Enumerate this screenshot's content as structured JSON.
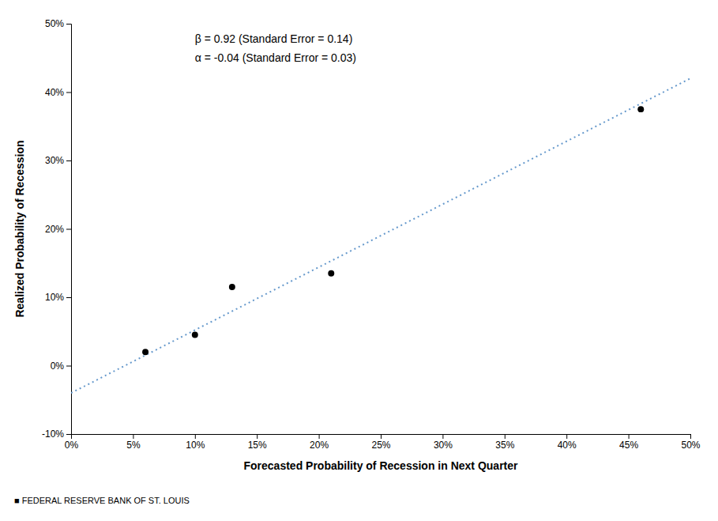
{
  "chart_data": {
    "type": "scatter",
    "x_label": "Forecasted Probability of Recession in Next Quarter",
    "y_label": "Realized Probability of Recession",
    "series": [
      {
        "type": "scatter",
        "color": "#000000",
        "marker": "circle",
        "x": [
          0.06,
          0.1,
          0.13,
          0.21,
          0.46
        ],
        "values": [
          0.02,
          0.045,
          0.115,
          0.135,
          0.375
        ]
      },
      {
        "type": "line",
        "color": "#6699CC",
        "line_style": "dotted",
        "x": [
          0.0,
          0.5
        ],
        "values": [
          -0.04,
          0.42
        ]
      }
    ],
    "xlim": [
      0.0,
      0.5
    ],
    "ylim": [
      -0.1,
      0.5
    ],
    "xticks": [
      {
        "value": 0.0,
        "label": "0%"
      },
      {
        "value": 0.05,
        "label": "5%"
      },
      {
        "value": 0.1,
        "label": "10%"
      },
      {
        "value": 0.15,
        "label": "15%"
      },
      {
        "value": 0.2,
        "label": "20%"
      },
      {
        "value": 0.25,
        "label": "25%"
      },
      {
        "value": 0.3,
        "label": "30%"
      },
      {
        "value": 0.35,
        "label": "35%"
      },
      {
        "value": 0.4,
        "label": "40%"
      },
      {
        "value": 0.45,
        "label": "45%"
      },
      {
        "value": 0.5,
        "label": "50%"
      }
    ],
    "yticks": [
      {
        "value": -0.1,
        "label": "-10%"
      },
      {
        "value": 0.0,
        "label": "0%"
      },
      {
        "value": 0.1,
        "label": "10%"
      },
      {
        "value": 0.2,
        "label": "20%"
      },
      {
        "value": 0.3,
        "label": "30%"
      },
      {
        "value": 0.4,
        "label": "40%"
      },
      {
        "value": 0.5,
        "label": "50%"
      }
    ],
    "annotations": [
      "β = 0.92 (Standard Error = 0.14)",
      "α = -0.04 (Standard Error = 0.03)",
      "■  FEDERAL RESERVE BANK OF ST. LOUIS"
    ],
    "grid": false
  }
}
